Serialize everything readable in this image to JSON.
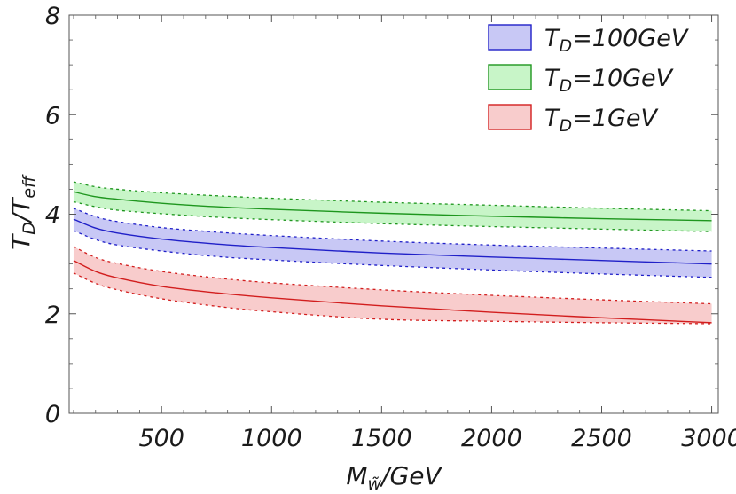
{
  "chart_data": {
    "type": "line",
    "title": "",
    "xlabel": "M_w~/GeV",
    "ylabel": "T_D/T_eff",
    "xlabel_parts": {
      "main": "M",
      "sub": "w̃",
      "rest": "/GeV"
    },
    "ylabel_parts": {
      "a": "T",
      "a_sub": "D",
      "sep": "/",
      "b": "T",
      "b_sub": "eff"
    },
    "xlim": [
      80,
      3030
    ],
    "ylim": [
      0,
      8
    ],
    "xticks": [
      500,
      1000,
      1500,
      2000,
      2500,
      3000
    ],
    "yticks": [
      0,
      2,
      4,
      6,
      8
    ],
    "x": [
      100,
      200,
      300,
      500,
      750,
      1000,
      1500,
      2000,
      2500,
      3000
    ],
    "series": [
      {
        "name": "T_D=100GeV",
        "label_main": "T",
        "label_sub": "D",
        "label_rest": "=100GeV",
        "color": "#2020c8",
        "fill": "#c8c8f5",
        "center": [
          3.9,
          3.72,
          3.62,
          3.5,
          3.4,
          3.33,
          3.22,
          3.14,
          3.07,
          3.0
        ],
        "upper": [
          4.12,
          3.95,
          3.85,
          3.73,
          3.64,
          3.57,
          3.46,
          3.38,
          3.32,
          3.26
        ],
        "lower": [
          3.67,
          3.49,
          3.38,
          3.26,
          3.15,
          3.08,
          2.97,
          2.88,
          2.8,
          2.73
        ]
      },
      {
        "name": "T_D=10GeV",
        "label_main": "T",
        "label_sub": "D",
        "label_rest": "=10GeV",
        "color": "#1e961e",
        "fill": "#c8f5c8",
        "center": [
          4.45,
          4.35,
          4.3,
          4.22,
          4.15,
          4.1,
          4.02,
          3.96,
          3.91,
          3.87
        ],
        "upper": [
          4.65,
          4.55,
          4.5,
          4.43,
          4.37,
          4.32,
          4.24,
          4.18,
          4.12,
          4.07
        ],
        "lower": [
          4.25,
          4.15,
          4.08,
          4.01,
          3.94,
          3.89,
          3.81,
          3.75,
          3.7,
          3.65
        ]
      },
      {
        "name": "T_D=1GeV",
        "label_main": "T",
        "label_sub": "D",
        "label_rest": "=1GeV",
        "color": "#d21e1e",
        "fill": "#f8cccc",
        "center": [
          3.07,
          2.85,
          2.72,
          2.55,
          2.42,
          2.32,
          2.16,
          2.03,
          1.92,
          1.82
        ],
        "upper": [
          3.35,
          3.13,
          3.01,
          2.85,
          2.72,
          2.62,
          2.48,
          2.37,
          2.28,
          2.2
        ],
        "lower": [
          2.82,
          2.61,
          2.48,
          2.3,
          2.15,
          2.04,
          1.89,
          1.85,
          1.82,
          1.8
        ]
      }
    ],
    "legend": "top-right"
  }
}
